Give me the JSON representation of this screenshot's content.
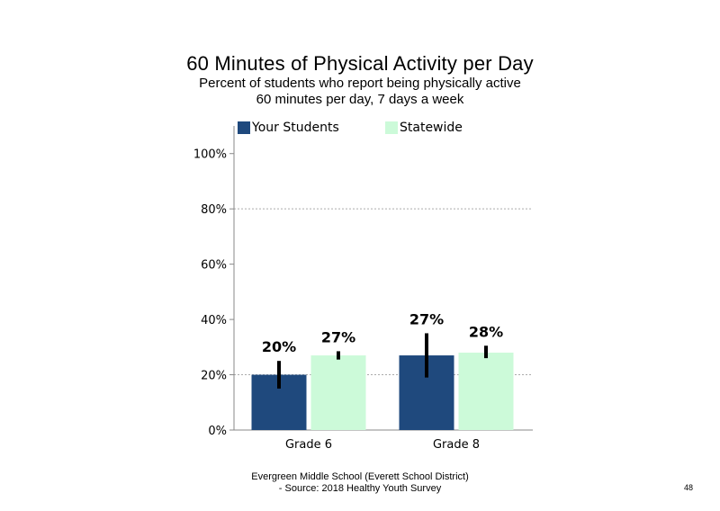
{
  "title": "60 Minutes of Physical Activity per Day",
  "subtitle_line1": "Percent of students who report being physically active",
  "subtitle_line2": "60 minutes per day, 7 days a week",
  "footer_line1": "Evergreen Middle School (Everett School District)",
  "footer_line2": "- Source: 2018 Healthy Youth Survey",
  "page_number": "48",
  "colors": {
    "your_students": "#1f497d",
    "statewide": "#ccfad9",
    "error_bar": "#000000",
    "grid": "#aaaaaa",
    "axis": "#888888"
  },
  "chart_data": {
    "type": "bar",
    "categories": [
      "Grade 6",
      "Grade 8"
    ],
    "series": [
      {
        "name": "Your Students",
        "values": [
          20,
          27
        ],
        "labels": [
          "20%",
          "27%"
        ],
        "error_low": [
          15,
          19
        ],
        "error_high": [
          25,
          35
        ]
      },
      {
        "name": "Statewide",
        "values": [
          27,
          28
        ],
        "labels": [
          "27%",
          "28%"
        ],
        "error_low": [
          25.5,
          26
        ],
        "error_high": [
          28.5,
          30.5
        ]
      }
    ],
    "ylim": [
      0,
      110
    ],
    "yticks": [
      0,
      20,
      40,
      60,
      80,
      100
    ],
    "ytick_labels": [
      "0%",
      "20%",
      "40%",
      "60%",
      "80%",
      "100%"
    ],
    "gridlines": [
      20,
      80
    ],
    "legend": "top"
  }
}
